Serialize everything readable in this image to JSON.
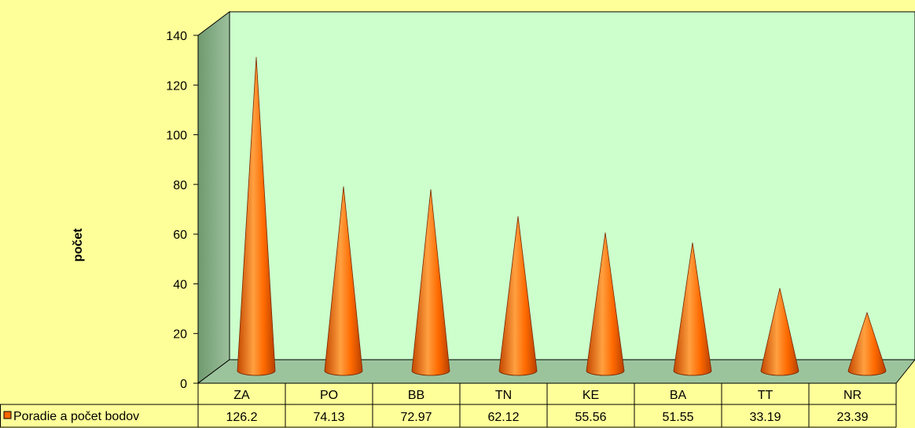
{
  "chart_data": {
    "type": "bar",
    "bar_shape": "cone",
    "three_d": true,
    "categories": [
      "ZA",
      "PO",
      "BB",
      "TN",
      "KE",
      "BA",
      "TT",
      "NR"
    ],
    "series": [
      {
        "name": "Poradie a počet bodov",
        "values": [
          126.2,
          74.13,
          72.97,
          62.12,
          55.56,
          51.55,
          33.19,
          23.39
        ]
      }
    ],
    "ylabel": "počet",
    "ylim": [
      0,
      140
    ],
    "yticks": [
      0,
      20,
      40,
      60,
      80,
      100,
      120,
      140
    ],
    "grid": false,
    "data_table": true,
    "legend_position": "data-table-left",
    "colors": {
      "background": "#ffff99",
      "back_wall": "#ccffcc",
      "side_wall": "#8cb08c",
      "floor": "#9cc49c",
      "cone_light": "#ff9a33",
      "cone_mid": "#ff6600",
      "cone_dark": "#c44800",
      "legend_swatch": "#ff6600"
    }
  }
}
